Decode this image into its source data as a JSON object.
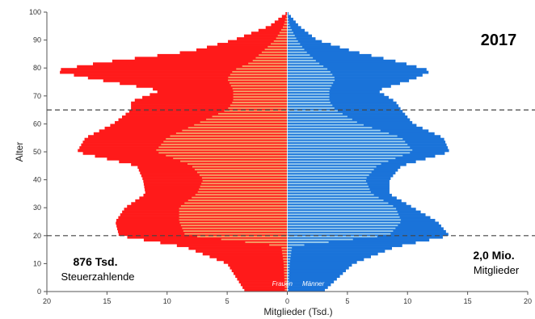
{
  "chart_data": {
    "type": "bar",
    "title": "2017",
    "xlabel": "Mitglieder (Tsd.)",
    "ylabel": "Alter",
    "xlim": [
      -20,
      20
    ],
    "ylim": [
      0,
      100
    ],
    "xticks": [
      "20",
      "15",
      "10",
      "5",
      "0",
      "5",
      "10",
      "15",
      "20"
    ],
    "yticks": [
      "0",
      "10",
      "20",
      "30",
      "40",
      "50",
      "60",
      "70",
      "80",
      "90",
      "100"
    ],
    "reference_lines_age": [
      20,
      65
    ],
    "labels": {
      "women": "Frauen",
      "men": "Männer"
    },
    "annotations": {
      "left_value": "876 Tsd.",
      "left_text": "Steuerzahlende",
      "right_value": "2,0 Mio.",
      "right_text": "Mitglieder"
    },
    "colors": {
      "women_members": "#ff1a1a",
      "women_taxpayers": "#f4a46a",
      "men_members": "#1a73d9",
      "men_taxpayers": "#9fd0ee",
      "reference_line": "#444444"
    },
    "series": [
      {
        "name": "Frauen",
        "ages": [
          0,
          10,
          16,
          20,
          25,
          30,
          35,
          40,
          45,
          50,
          55,
          60,
          65,
          68,
          72,
          76,
          79,
          82,
          86,
          90,
          95,
          100
        ],
        "members": [
          3.5,
          5.0,
          8.5,
          14.0,
          14.3,
          13.5,
          11.8,
          12.0,
          12.5,
          17.5,
          16.8,
          14.5,
          13.0,
          13.0,
          10.5,
          16.0,
          19.5,
          15.5,
          8.0,
          4.5,
          1.5,
          0.0
        ],
        "taxpayers": [
          0.2,
          0.3,
          0.5,
          8.5,
          9.0,
          9.0,
          7.5,
          7.0,
          8.0,
          11.0,
          10.0,
          7.5,
          5.0,
          4.5,
          4.5,
          5.0,
          4.5,
          3.0,
          2.0,
          1.0,
          0.3,
          0.0
        ]
      },
      {
        "name": "Männer",
        "ages": [
          0,
          10,
          16,
          20,
          25,
          30,
          35,
          40,
          45,
          50,
          55,
          60,
          65,
          68,
          72,
          76,
          79,
          82,
          86,
          90,
          95,
          100
        ],
        "members": [
          3.0,
          5.5,
          9.0,
          13.5,
          12.5,
          10.5,
          8.5,
          8.5,
          9.5,
          13.5,
          13.0,
          10.5,
          9.5,
          9.0,
          7.5,
          10.5,
          12.0,
          9.5,
          5.5,
          2.5,
          1.0,
          0.0
        ],
        "taxpayers": [
          0.1,
          0.2,
          0.4,
          8.5,
          9.5,
          9.0,
          7.0,
          6.5,
          7.5,
          10.5,
          9.5,
          6.0,
          4.0,
          3.5,
          3.5,
          4.0,
          3.5,
          2.5,
          1.5,
          0.8,
          0.2,
          0.0
        ]
      }
    ]
  }
}
